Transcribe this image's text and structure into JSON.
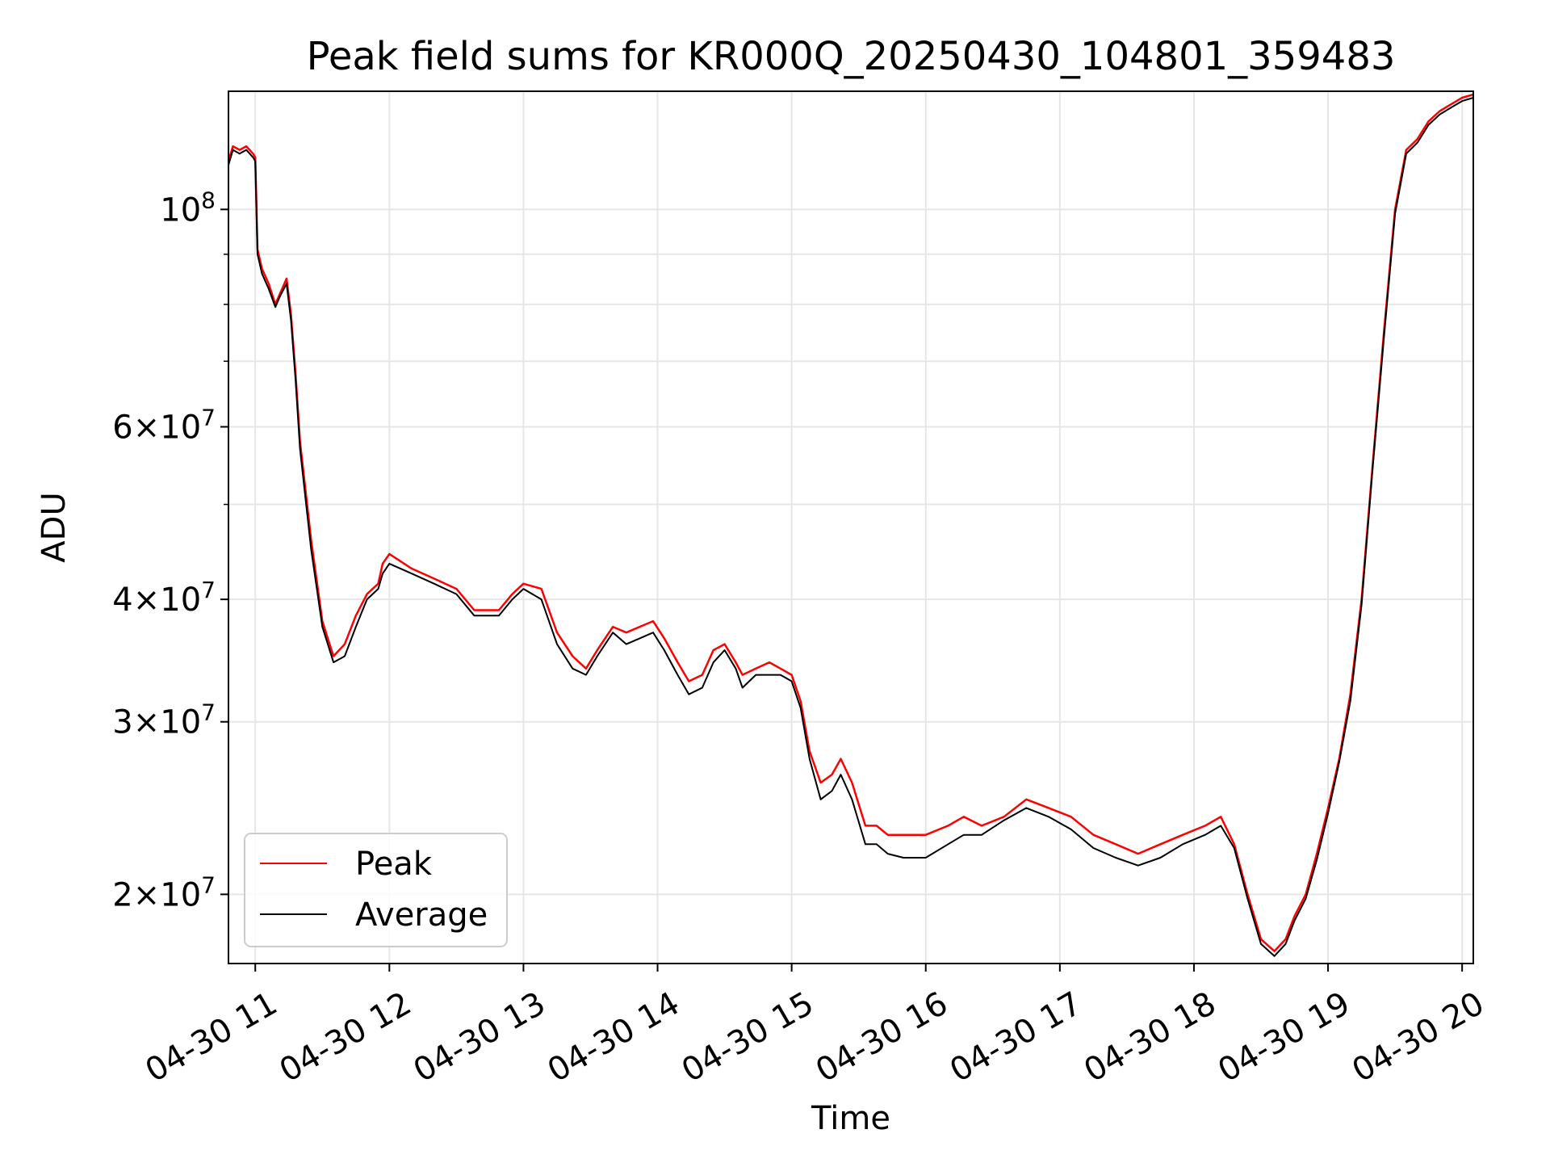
{
  "chart_data": {
    "type": "line",
    "title": "Peak field sums for KR000Q_20250430_104801_359483",
    "xlabel": "Time",
    "ylabel": "ADU",
    "yscale": "log",
    "ylim": [
      17000000,
      132000000
    ],
    "xlim": [
      "2025-04-30 10:48",
      "2025-04-30 20:05"
    ],
    "grid": true,
    "legend_position": "lower-left",
    "x_ticks": [
      "2025-04-30 11:00",
      "2025-04-30 12:00",
      "2025-04-30 13:00",
      "2025-04-30 14:00",
      "2025-04-30 15:00",
      "2025-04-30 16:00",
      "2025-04-30 17:00",
      "2025-04-30 18:00",
      "2025-04-30 19:00",
      "2025-04-30 20:00"
    ],
    "x_tick_labels": [
      "04-30 11",
      "04-30 12",
      "04-30 13",
      "04-30 14",
      "04-30 15",
      "04-30 16",
      "04-30 17",
      "04-30 18",
      "04-30 19",
      "04-30 20"
    ],
    "y_ticks": [
      {
        "value": 20000000,
        "base": "2×10",
        "exp": "7"
      },
      {
        "value": 30000000,
        "base": "3×10",
        "exp": "7"
      },
      {
        "value": 40000000,
        "base": "4×10",
        "exp": "7"
      },
      {
        "value": 60000000,
        "base": "6×10",
        "exp": "7"
      },
      {
        "value": 100000000,
        "base": "10",
        "exp": "8"
      }
    ],
    "y_minor_ticks": [
      50000000,
      70000000,
      80000000,
      90000000
    ],
    "series": [
      {
        "name": "Peak",
        "color": "#ff0000",
        "x": [
          "2025-04-30 10:48",
          "2025-04-30 10:50",
          "2025-04-30 10:53",
          "2025-04-30 10:56",
          "2025-04-30 10:59",
          "2025-04-30 11:00",
          "2025-04-30 11:01",
          "2025-04-30 11:03",
          "2025-04-30 11:06",
          "2025-04-30 11:09",
          "2025-04-30 11:11",
          "2025-04-30 11:14",
          "2025-04-30 11:16",
          "2025-04-30 11:18",
          "2025-04-30 11:20",
          "2025-04-30 11:25",
          "2025-04-30 11:30",
          "2025-04-30 11:35",
          "2025-04-30 11:40",
          "2025-04-30 11:45",
          "2025-04-30 11:50",
          "2025-04-30 11:55",
          "2025-04-30 11:57",
          "2025-04-30 12:00",
          "2025-04-30 12:10",
          "2025-04-30 12:20",
          "2025-04-30 12:30",
          "2025-04-30 12:38",
          "2025-04-30 12:43",
          "2025-04-30 12:49",
          "2025-04-30 12:55",
          "2025-04-30 13:00",
          "2025-04-30 13:08",
          "2025-04-30 13:15",
          "2025-04-30 13:22",
          "2025-04-30 13:28",
          "2025-04-30 13:33",
          "2025-04-30 13:40",
          "2025-04-30 13:46",
          "2025-04-30 13:52",
          "2025-04-30 13:58",
          "2025-04-30 14:03",
          "2025-04-30 14:09",
          "2025-04-30 14:14",
          "2025-04-30 14:20",
          "2025-04-30 14:25",
          "2025-04-30 14:30",
          "2025-04-30 14:35",
          "2025-04-30 14:38",
          "2025-04-30 14:44",
          "2025-04-30 14:50",
          "2025-04-30 14:55",
          "2025-04-30 15:00",
          "2025-04-30 15:04",
          "2025-04-30 15:08",
          "2025-04-30 15:13",
          "2025-04-30 15:18",
          "2025-04-30 15:22",
          "2025-04-30 15:27",
          "2025-04-30 15:33",
          "2025-04-30 15:38",
          "2025-04-30 15:43",
          "2025-04-30 15:50",
          "2025-04-30 16:00",
          "2025-04-30 16:10",
          "2025-04-30 16:17",
          "2025-04-30 16:25",
          "2025-04-30 16:35",
          "2025-04-30 16:45",
          "2025-04-30 16:55",
          "2025-04-30 17:05",
          "2025-04-30 17:15",
          "2025-04-30 17:25",
          "2025-04-30 17:35",
          "2025-04-30 17:45",
          "2025-04-30 17:55",
          "2025-04-30 18:05",
          "2025-04-30 18:12",
          "2025-04-30 18:18",
          "2025-04-30 18:24",
          "2025-04-30 18:30",
          "2025-04-30 18:36",
          "2025-04-30 18:41",
          "2025-04-30 18:45",
          "2025-04-30 18:50",
          "2025-04-30 18:55",
          "2025-04-30 19:00",
          "2025-04-30 19:05",
          "2025-04-30 19:10",
          "2025-04-30 19:15",
          "2025-04-30 19:20",
          "2025-04-30 19:25",
          "2025-04-30 19:30",
          "2025-04-30 19:35",
          "2025-04-30 19:40",
          "2025-04-30 19:45",
          "2025-04-30 19:50",
          "2025-04-30 19:55",
          "2025-04-30 20:00",
          "2025-04-30 20:05"
        ],
        "values": [
          112000000,
          116000000,
          115000000,
          116000000,
          114000000,
          113000000,
          91000000,
          87000000,
          84000000,
          80000000,
          82000000,
          85000000,
          78000000,
          68000000,
          58000000,
          46000000,
          38000000,
          35000000,
          36000000,
          38500000,
          40500000,
          41500000,
          43500000,
          44500000,
          43000000,
          42000000,
          41000000,
          39000000,
          39000000,
          39000000,
          40500000,
          41500000,
          41000000,
          37000000,
          35000000,
          34000000,
          35500000,
          37500000,
          37000000,
          37500000,
          38000000,
          36500000,
          34500000,
          33000000,
          33500000,
          35500000,
          36000000,
          34500000,
          33500000,
          34000000,
          34500000,
          34000000,
          33500000,
          31500000,
          28000000,
          26000000,
          26500000,
          27500000,
          26000000,
          23500000,
          23500000,
          23000000,
          23000000,
          23000000,
          23500000,
          24000000,
          23500000,
          24000000,
          25000000,
          24500000,
          24000000,
          23000000,
          22500000,
          22000000,
          22500000,
          23000000,
          23500000,
          24000000,
          22500000,
          20000000,
          18000000,
          17500000,
          18000000,
          19000000,
          20000000,
          22000000,
          24500000,
          27500000,
          32000000,
          40000000,
          55000000,
          75000000,
          100000000,
          115000000,
          118000000,
          123000000,
          126000000,
          128000000,
          130000000,
          131000000
        ]
      },
      {
        "name": "Average",
        "color": "#000000",
        "x": [
          "2025-04-30 10:48",
          "2025-04-30 10:50",
          "2025-04-30 10:53",
          "2025-04-30 10:56",
          "2025-04-30 10:59",
          "2025-04-30 11:00",
          "2025-04-30 11:01",
          "2025-04-30 11:03",
          "2025-04-30 11:06",
          "2025-04-30 11:09",
          "2025-04-30 11:11",
          "2025-04-30 11:14",
          "2025-04-30 11:16",
          "2025-04-30 11:18",
          "2025-04-30 11:20",
          "2025-04-30 11:25",
          "2025-04-30 11:30",
          "2025-04-30 11:35",
          "2025-04-30 11:40",
          "2025-04-30 11:45",
          "2025-04-30 11:50",
          "2025-04-30 11:55",
          "2025-04-30 11:57",
          "2025-04-30 12:00",
          "2025-04-30 12:10",
          "2025-04-30 12:20",
          "2025-04-30 12:30",
          "2025-04-30 12:38",
          "2025-04-30 12:43",
          "2025-04-30 12:49",
          "2025-04-30 12:55",
          "2025-04-30 13:00",
          "2025-04-30 13:08",
          "2025-04-30 13:15",
          "2025-04-30 13:22",
          "2025-04-30 13:28",
          "2025-04-30 13:33",
          "2025-04-30 13:40",
          "2025-04-30 13:46",
          "2025-04-30 13:52",
          "2025-04-30 13:58",
          "2025-04-30 14:03",
          "2025-04-30 14:09",
          "2025-04-30 14:14",
          "2025-04-30 14:20",
          "2025-04-30 14:25",
          "2025-04-30 14:30",
          "2025-04-30 14:35",
          "2025-04-30 14:38",
          "2025-04-30 14:44",
          "2025-04-30 14:50",
          "2025-04-30 14:55",
          "2025-04-30 15:00",
          "2025-04-30 15:04",
          "2025-04-30 15:08",
          "2025-04-30 15:13",
          "2025-04-30 15:18",
          "2025-04-30 15:22",
          "2025-04-30 15:27",
          "2025-04-30 15:33",
          "2025-04-30 15:38",
          "2025-04-30 15:43",
          "2025-04-30 15:50",
          "2025-04-30 16:00",
          "2025-04-30 16:10",
          "2025-04-30 16:17",
          "2025-04-30 16:25",
          "2025-04-30 16:35",
          "2025-04-30 16:45",
          "2025-04-30 16:55",
          "2025-04-30 17:05",
          "2025-04-30 17:15",
          "2025-04-30 17:25",
          "2025-04-30 17:35",
          "2025-04-30 17:45",
          "2025-04-30 17:55",
          "2025-04-30 18:05",
          "2025-04-30 18:12",
          "2025-04-30 18:18",
          "2025-04-30 18:24",
          "2025-04-30 18:30",
          "2025-04-30 18:36",
          "2025-04-30 18:41",
          "2025-04-30 18:45",
          "2025-04-30 18:50",
          "2025-04-30 18:55",
          "2025-04-30 19:00",
          "2025-04-30 19:05",
          "2025-04-30 19:10",
          "2025-04-30 19:15",
          "2025-04-30 19:20",
          "2025-04-30 19:25",
          "2025-04-30 19:30",
          "2025-04-30 19:35",
          "2025-04-30 19:40",
          "2025-04-30 19:45",
          "2025-04-30 19:50",
          "2025-04-30 19:55",
          "2025-04-30 20:00",
          "2025-04-30 20:05"
        ],
        "values": [
          111000000,
          115000000,
          114000000,
          115000000,
          113000000,
          112000000,
          90000000,
          86000000,
          83000000,
          79500000,
          81500000,
          84000000,
          77000000,
          67000000,
          57000000,
          45000000,
          37500000,
          34500000,
          35000000,
          37500000,
          40000000,
          41000000,
          42500000,
          43500000,
          42500000,
          41500000,
          40500000,
          38500000,
          38500000,
          38500000,
          40000000,
          41000000,
          40000000,
          36000000,
          34000000,
          33500000,
          35000000,
          37000000,
          36000000,
          36500000,
          37000000,
          35500000,
          33500000,
          32000000,
          32500000,
          34500000,
          35500000,
          34000000,
          32500000,
          33500000,
          33500000,
          33500000,
          33000000,
          31000000,
          27500000,
          25000000,
          25500000,
          26500000,
          25000000,
          22500000,
          22500000,
          22000000,
          21800000,
          21800000,
          22500000,
          23000000,
          23000000,
          23800000,
          24500000,
          24000000,
          23300000,
          22300000,
          21800000,
          21400000,
          21800000,
          22500000,
          23000000,
          23500000,
          22300000,
          19800000,
          17800000,
          17300000,
          17800000,
          18800000,
          19800000,
          21700000,
          24200000,
          27300000,
          31500000,
          39500000,
          54500000,
          74000000,
          99000000,
          114000000,
          117000000,
          122000000,
          125000000,
          127000000,
          129000000,
          130000000
        ]
      }
    ]
  }
}
